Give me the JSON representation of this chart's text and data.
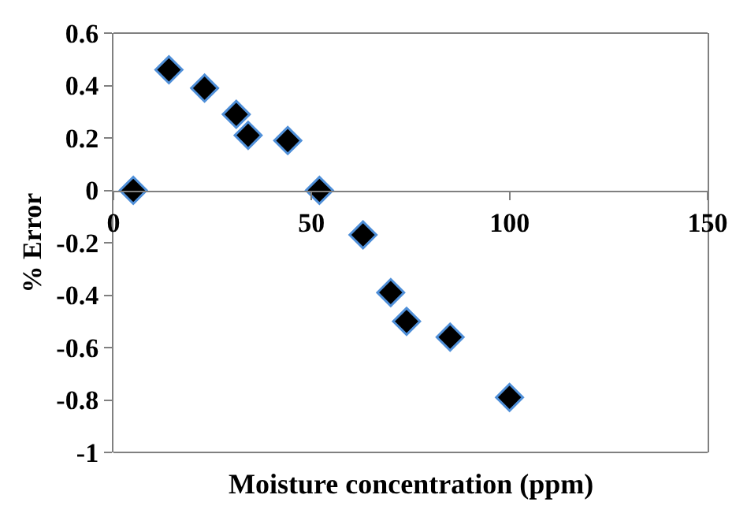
{
  "chart_data": {
    "type": "scatter",
    "xlabel": "Moisture concentration (ppm)",
    "ylabel": "% Error",
    "x": [
      5,
      14,
      23,
      31,
      34,
      44,
      52,
      63,
      70,
      74,
      85,
      100
    ],
    "series": [
      {
        "color": "#000000",
        "values": [
          0,
          0.46,
          0.39,
          0.29,
          0.21,
          0.19,
          0,
          -0.17,
          -0.39,
          -0.5,
          -0.56,
          -0.79
        ]
      }
    ],
    "xlim": [
      0,
      150
    ],
    "xticks": [
      0,
      50,
      100,
      150
    ],
    "ylim": [
      -1,
      0.6
    ],
    "yticks": [
      -1,
      -0.8,
      -0.6,
      -0.4,
      -0.2,
      0,
      0.2,
      0.4,
      0.6
    ],
    "marker": "diamond"
  }
}
